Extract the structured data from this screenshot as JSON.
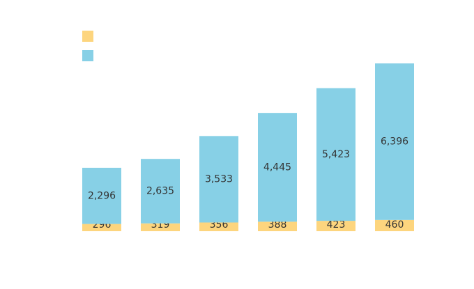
{
  "chart_data": {
    "type": "stacked_bar",
    "categories": [
      null,
      null,
      null,
      null,
      null,
      null
    ],
    "series": [
      {
        "color": "#fdd57e",
        "values": [
          296,
          319,
          356,
          388,
          423,
          460
        ]
      },
      {
        "color": "#87d0e6",
        "values": [
          2296,
          2635,
          3533,
          4445,
          5423,
          6396
        ],
        "value_labels": [
          "2,296",
          "2,635",
          "3,533",
          "4,445",
          "5,423",
          "6,396"
        ]
      }
    ],
    "ylim": [
      0,
      7000
    ]
  }
}
